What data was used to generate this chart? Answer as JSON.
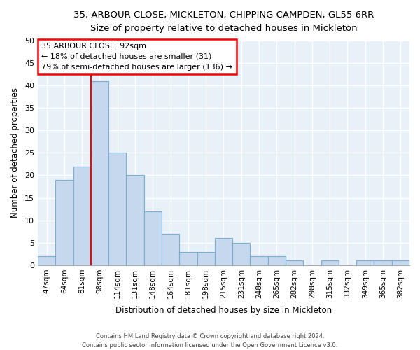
{
  "title1": "35, ARBOUR CLOSE, MICKLETON, CHIPPING CAMPDEN, GL55 6RR",
  "title2": "Size of property relative to detached houses in Mickleton",
  "xlabel": "Distribution of detached houses by size in Mickleton",
  "ylabel": "Number of detached properties",
  "bar_color": "#c5d8ee",
  "bar_edge_color": "#7aadd0",
  "categories": [
    "47sqm",
    "64sqm",
    "81sqm",
    "98sqm",
    "114sqm",
    "131sqm",
    "148sqm",
    "164sqm",
    "181sqm",
    "198sqm",
    "215sqm",
    "231sqm",
    "248sqm",
    "265sqm",
    "282sqm",
    "298sqm",
    "315sqm",
    "332sqm",
    "349sqm",
    "365sqm",
    "382sqm"
  ],
  "values": [
    2,
    19,
    22,
    41,
    25,
    20,
    12,
    7,
    3,
    3,
    6,
    5,
    2,
    2,
    1,
    0,
    1,
    0,
    1,
    1,
    1
  ],
  "annotation_line1": "35 ARBOUR CLOSE: 92sqm",
  "annotation_line2": "← 18% of detached houses are smaller (31)",
  "annotation_line3": "79% of semi-detached houses are larger (136) →",
  "vline_x": 2.5,
  "ylim_max": 50,
  "yticks": [
    0,
    5,
    10,
    15,
    20,
    25,
    30,
    35,
    40,
    45,
    50
  ],
  "footer_line1": "Contains HM Land Registry data © Crown copyright and database right 2024.",
  "footer_line2": "Contains public sector information licensed under the Open Government Licence v3.0.",
  "fig_bg_color": "#ffffff",
  "plot_bg_color": "#e8f0f8"
}
